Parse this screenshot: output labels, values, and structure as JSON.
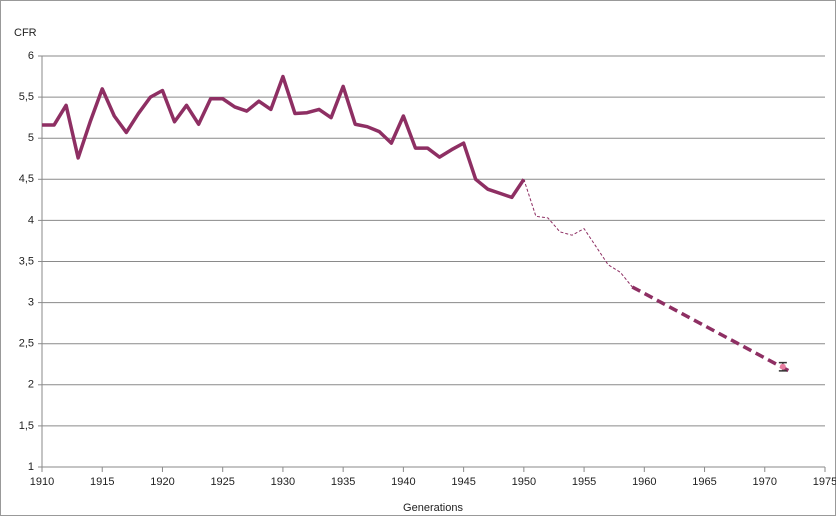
{
  "chart_data": {
    "type": "line",
    "y_label": "CFR",
    "x_label": "Generations",
    "xlim": [
      1910,
      1975
    ],
    "xticks": [
      1910,
      1915,
      1920,
      1925,
      1930,
      1935,
      1940,
      1945,
      1950,
      1955,
      1960,
      1965,
      1970,
      1975
    ],
    "ylim": [
      1,
      6
    ],
    "yticks": [
      1,
      {
        "value": 1.5,
        "label": "1,5"
      },
      2,
      {
        "value": 2.5,
        "label": "2,5"
      },
      3,
      {
        "value": 3.5,
        "label": "3,5"
      },
      4,
      {
        "value": 4.5,
        "label": "4,5"
      },
      5,
      {
        "value": 5.5,
        "label": "5,5"
      },
      6
    ],
    "grid": true,
    "series": [
      {
        "color": "#8e2f63",
        "style": "solid",
        "width": 3.5,
        "x": [
          1910,
          1911,
          1912,
          1913,
          1914,
          1915,
          1916,
          1917,
          1918,
          1919,
          1920,
          1921,
          1922,
          1923,
          1924,
          1925,
          1926,
          1927,
          1928,
          1929,
          1930,
          1931,
          1932,
          1933,
          1934,
          1935,
          1936,
          1937,
          1938,
          1939,
          1940,
          1941,
          1942,
          1943,
          1944,
          1945,
          1946,
          1947,
          1948,
          1949,
          1950
        ],
        "values": [
          5.16,
          5.16,
          5.4,
          4.76,
          5.2,
          5.6,
          5.27,
          5.07,
          5.3,
          5.5,
          5.58,
          5.2,
          5.4,
          5.17,
          5.48,
          5.48,
          5.38,
          5.33,
          5.45,
          5.35,
          5.75,
          5.3,
          5.31,
          5.35,
          5.25,
          5.63,
          5.17,
          5.14,
          5.08,
          4.94,
          5.27,
          4.88,
          4.88,
          4.77,
          4.86,
          4.94,
          4.5,
          4.38,
          4.33,
          4.28,
          4.5
        ]
      },
      {
        "color": "#8e2f63",
        "style": "dotted",
        "width": 1,
        "x": [
          1950,
          1951,
          1952,
          1953,
          1954,
          1955,
          1956,
          1957,
          1958,
          1959
        ],
        "values": [
          4.5,
          4.05,
          4.03,
          3.86,
          3.82,
          3.9,
          3.68,
          3.46,
          3.37,
          3.19
        ]
      },
      {
        "color": "#8e2f63",
        "style": "dashed",
        "width": 3.5,
        "x": [
          1959,
          1972
        ],
        "values": [
          3.19,
          2.17
        ]
      }
    ],
    "markers": {
      "color": "#e87da0",
      "x": [
        1971.5
      ],
      "values": [
        2.22
      ],
      "errors": [
        0.05
      ]
    }
  }
}
